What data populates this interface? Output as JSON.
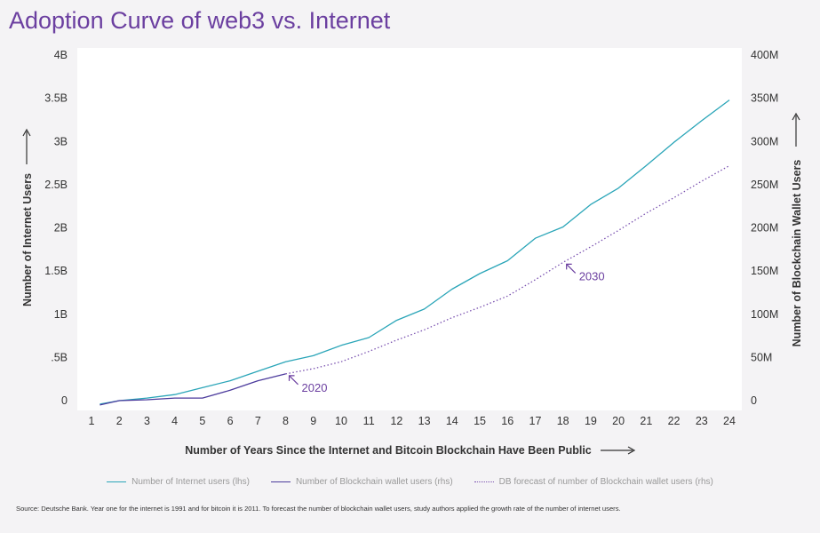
{
  "title": "Adoption Curve of web3 vs. Internet",
  "source": "Source: Deutsche Bank. Year one for the internet is 1991 and for bitcoin it is 2011. To forecast the number of blockchain wallet users, study authors applied the growth rate of the number of internet users.",
  "colors": {
    "internet": "#2aa5b8",
    "blockchain": "#4b3a9c",
    "forecast": "#7a52b0",
    "accent": "#6b3fa0",
    "plot_bg": "#ffffff"
  },
  "chart_data": {
    "type": "line",
    "title": "Adoption Curve of web3 vs. Internet",
    "xlabel": "Number of Years Since the Internet and Bitcoin Blockchain Have Been Public",
    "ylabel_left": "Number of Internet Users",
    "ylabel_right": "Number of Blockchain Wallet Users",
    "x_ticks": [
      "1",
      "2",
      "3",
      "4",
      "5",
      "6",
      "7",
      "8",
      "9",
      "10",
      "11",
      "12",
      "13",
      "14",
      "15",
      "16",
      "17",
      "18",
      "19",
      "20",
      "21",
      "22",
      "23",
      "24"
    ],
    "xlim": [
      1,
      24
    ],
    "y_left_ticks": [
      "0",
      ".5B",
      "1B",
      "1.5B",
      "2B",
      "2.5B",
      "3B",
      "3.5B",
      "4B"
    ],
    "y_left_lim": [
      0,
      4
    ],
    "y_left_unit": "B",
    "y_right_ticks": [
      "0",
      "50M",
      "100M",
      "150M",
      "200M",
      "250M",
      "300M",
      "350M",
      "400M"
    ],
    "y_right_lim": [
      0,
      400
    ],
    "y_right_unit": "M",
    "legend_position": "bottom-center",
    "grid": false,
    "series": [
      {
        "name": "Number of Internet users (lhs)",
        "axis": "left",
        "style": "solid",
        "x": [
          1.3,
          2,
          3,
          4,
          5,
          6,
          7,
          8,
          9,
          10,
          11,
          12,
          13,
          14,
          15,
          16,
          17,
          18,
          19,
          20,
          21,
          22,
          23,
          24
        ],
        "y": [
          -0.04,
          0.0,
          0.03,
          0.07,
          0.15,
          0.23,
          0.34,
          0.45,
          0.52,
          0.64,
          0.73,
          0.93,
          1.06,
          1.29,
          1.47,
          1.62,
          1.88,
          2.01,
          2.27,
          2.46,
          2.72,
          2.99,
          3.24,
          3.48
        ]
      },
      {
        "name": "Number of Blockchain wallet users (rhs)",
        "axis": "right",
        "style": "solid",
        "x": [
          1.3,
          2,
          3,
          4,
          5,
          6,
          7,
          8
        ],
        "y": [
          -5,
          0,
          1,
          3,
          3,
          12,
          23,
          31
        ]
      },
      {
        "name": "DB forecast of number of Blockchain wallet users (rhs)",
        "axis": "right",
        "style": "dotted",
        "x": [
          8,
          9,
          10,
          11,
          12,
          13,
          14,
          15,
          16,
          17,
          18,
          19,
          20,
          21,
          22,
          23,
          24
        ],
        "y": [
          31,
          37,
          45,
          57,
          70,
          82,
          96,
          108,
          121,
          140,
          160,
          178,
          197,
          217,
          235,
          254,
          272
        ]
      }
    ],
    "annotations": [
      {
        "text": "2020",
        "x": 8,
        "y": 31,
        "axis": "right"
      },
      {
        "text": "2030",
        "x": 18,
        "y": 160,
        "axis": "right"
      }
    ]
  }
}
